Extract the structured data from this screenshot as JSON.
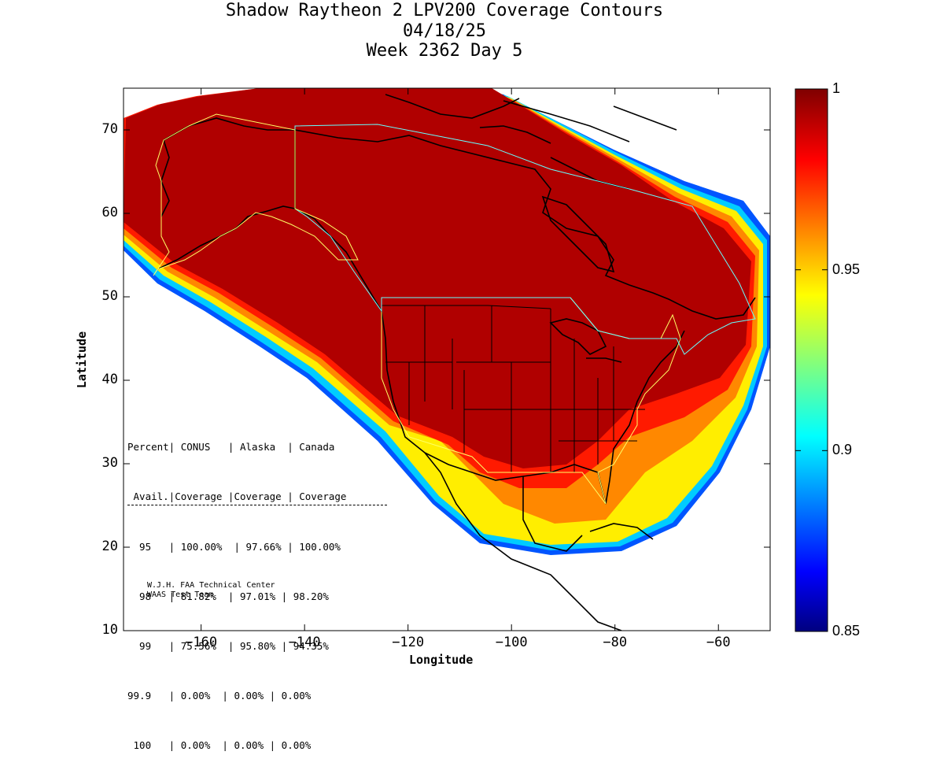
{
  "title": {
    "line1": "Shadow Raytheon 2 LPV200 Coverage Contours",
    "line2": "04/18/25",
    "line3": "Week 2362 Day 5"
  },
  "axes": {
    "xlabel": "Longitude",
    "ylabel": "Latitude",
    "x_ticks": [
      "−160",
      "−140",
      "−120",
      "−100",
      "−80",
      "−60"
    ],
    "x_tick_values": [
      -160,
      -140,
      -120,
      -100,
      -80,
      -60
    ],
    "y_ticks": [
      "10",
      "20",
      "30",
      "40",
      "50",
      "60",
      "70"
    ],
    "y_tick_values": [
      10,
      20,
      30,
      40,
      50,
      60,
      70
    ],
    "xlim": [
      -175,
      -50
    ],
    "ylim": [
      10,
      75
    ]
  },
  "colorbar": {
    "ticks": [
      "1",
      "0.95",
      "0.9",
      "0.85"
    ],
    "tick_values": [
      1,
      0.95,
      0.9,
      0.85
    ],
    "range": [
      0.85,
      1
    ]
  },
  "table": {
    "header1": "Percent| CONUS   | Alaska  | Canada",
    "header2": " Avail.|Coverage |Coverage | Coverage",
    "rows": [
      "  95   | 100.00%  | 97.66% | 100.00%",
      "  98   | 81.82%  | 97.01% | 98.20%",
      "  99   | 75.56%  | 95.80% | 94.35%",
      "99.9   | 0.00%  | 0.00% | 0.00%",
      " 100   | 0.00%  | 0.00% | 0.00%"
    ]
  },
  "credit": {
    "line1": "W.J.H. FAA Technical Center",
    "line2": "WAAS Test Team"
  },
  "map_data": {
    "type": "heatmap",
    "colormap": "jet",
    "value_range": [
      0.85,
      1
    ],
    "coverage_by_percent": [
      {
        "percent_avail": 95,
        "conus": 100.0,
        "alaska": 97.66,
        "canada": 100.0
      },
      {
        "percent_avail": 98,
        "conus": 81.82,
        "alaska": 97.01,
        "canada": 98.2
      },
      {
        "percent_avail": 99,
        "conus": 75.56,
        "alaska": 95.8,
        "canada": 94.35
      },
      {
        "percent_avail": 99.9,
        "conus": 0.0,
        "alaska": 0.0,
        "canada": 0.0
      },
      {
        "percent_avail": 100,
        "conus": 0.0,
        "alaska": 0.0,
        "canada": 0.0
      }
    ]
  }
}
